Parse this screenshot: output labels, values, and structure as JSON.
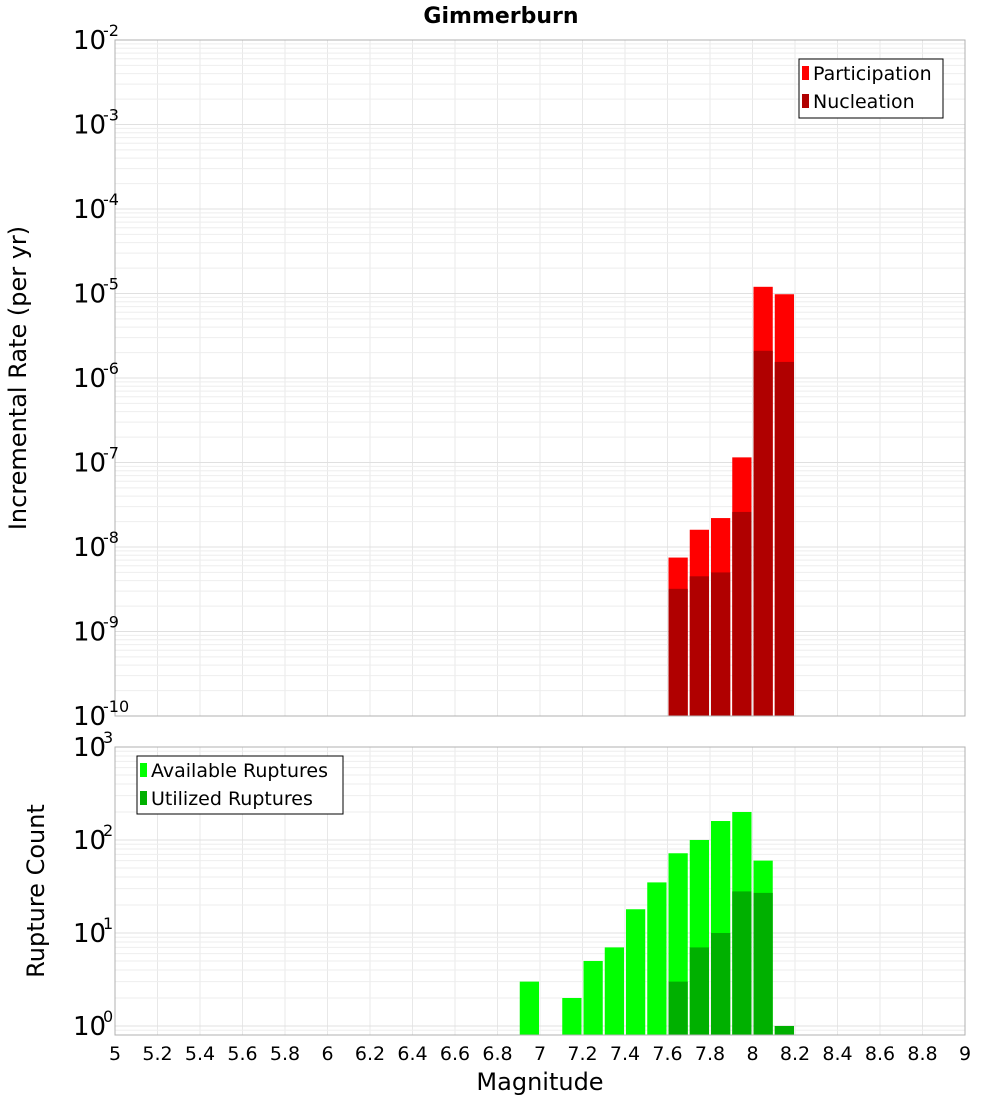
{
  "chart_data": [
    {
      "type": "bar",
      "title": "Gimmerburn",
      "ylabel": "Incremental Rate (per yr)",
      "xlabel": "",
      "yscale": "log",
      "xlim": [
        5,
        9
      ],
      "ylim": [
        1e-10,
        0.01
      ],
      "bin_width": 0.1,
      "yticks": [
        {
          "base": "10",
          "exp": "-10",
          "value": 1e-10
        },
        {
          "base": "10",
          "exp": "-9",
          "value": 1e-09
        },
        {
          "base": "10",
          "exp": "-8",
          "value": 1e-08
        },
        {
          "base": "10",
          "exp": "-7",
          "value": 1e-07
        },
        {
          "base": "10",
          "exp": "-6",
          "value": 1e-06
        },
        {
          "base": "10",
          "exp": "-5",
          "value": 1e-05
        },
        {
          "base": "10",
          "exp": "-4",
          "value": 0.0001
        },
        {
          "base": "10",
          "exp": "-3",
          "value": 0.001
        },
        {
          "base": "10",
          "exp": "-2",
          "value": 0.01
        }
      ],
      "grid": true,
      "legend_position": "top-right",
      "series": [
        {
          "name": "Participation",
          "color": "#ff0000",
          "x": [
            7.65,
            7.75,
            7.85,
            7.95,
            8.05,
            8.15
          ],
          "values": [
            7.5e-09,
            1.6e-08,
            2.2e-08,
            1.15e-07,
            1.2e-05,
            9.8e-06
          ]
        },
        {
          "name": "Nucleation",
          "color": "#b00000",
          "x": [
            7.65,
            7.75,
            7.85,
            7.95,
            8.05,
            8.15
          ],
          "values": [
            3.2e-09,
            4.5e-09,
            5e-09,
            2.6e-08,
            2.1e-06,
            1.55e-06
          ]
        }
      ]
    },
    {
      "type": "bar",
      "title": "",
      "ylabel": "Rupture Count",
      "xlabel": "Magnitude",
      "yscale": "log",
      "xlim": [
        5,
        9
      ],
      "ylim": [
        0.8,
        1000
      ],
      "bin_width": 0.1,
      "xticks": [
        "5",
        "5.2",
        "5.4",
        "5.6",
        "5.8",
        "6",
        "6.2",
        "6.4",
        "6.6",
        "6.8",
        "7",
        "7.2",
        "7.4",
        "7.6",
        "7.8",
        "8",
        "8.2",
        "8.4",
        "8.6",
        "8.8",
        "9"
      ],
      "yticks": [
        {
          "base": "10",
          "exp": "0",
          "value": 1
        },
        {
          "base": "10",
          "exp": "1",
          "value": 10
        },
        {
          "base": "10",
          "exp": "2",
          "value": 100
        },
        {
          "base": "10",
          "exp": "3",
          "value": 1000
        }
      ],
      "grid": true,
      "legend_position": "top-left",
      "series": [
        {
          "name": "Available Ruptures",
          "color": "#00ff00",
          "x": [
            6.95,
            7.15,
            7.25,
            7.35,
            7.45,
            7.55,
            7.65,
            7.75,
            7.85,
            7.95,
            8.05,
            8.15
          ],
          "values": [
            3,
            2,
            5,
            7,
            18,
            35,
            72,
            100,
            160,
            200,
            60,
            1
          ]
        },
        {
          "name": "Utilized Ruptures",
          "color": "#00b000",
          "x": [
            7.65,
            7.75,
            7.85,
            7.95,
            8.05,
            8.15
          ],
          "values": [
            3,
            7,
            10,
            28,
            27,
            1
          ]
        }
      ]
    }
  ]
}
